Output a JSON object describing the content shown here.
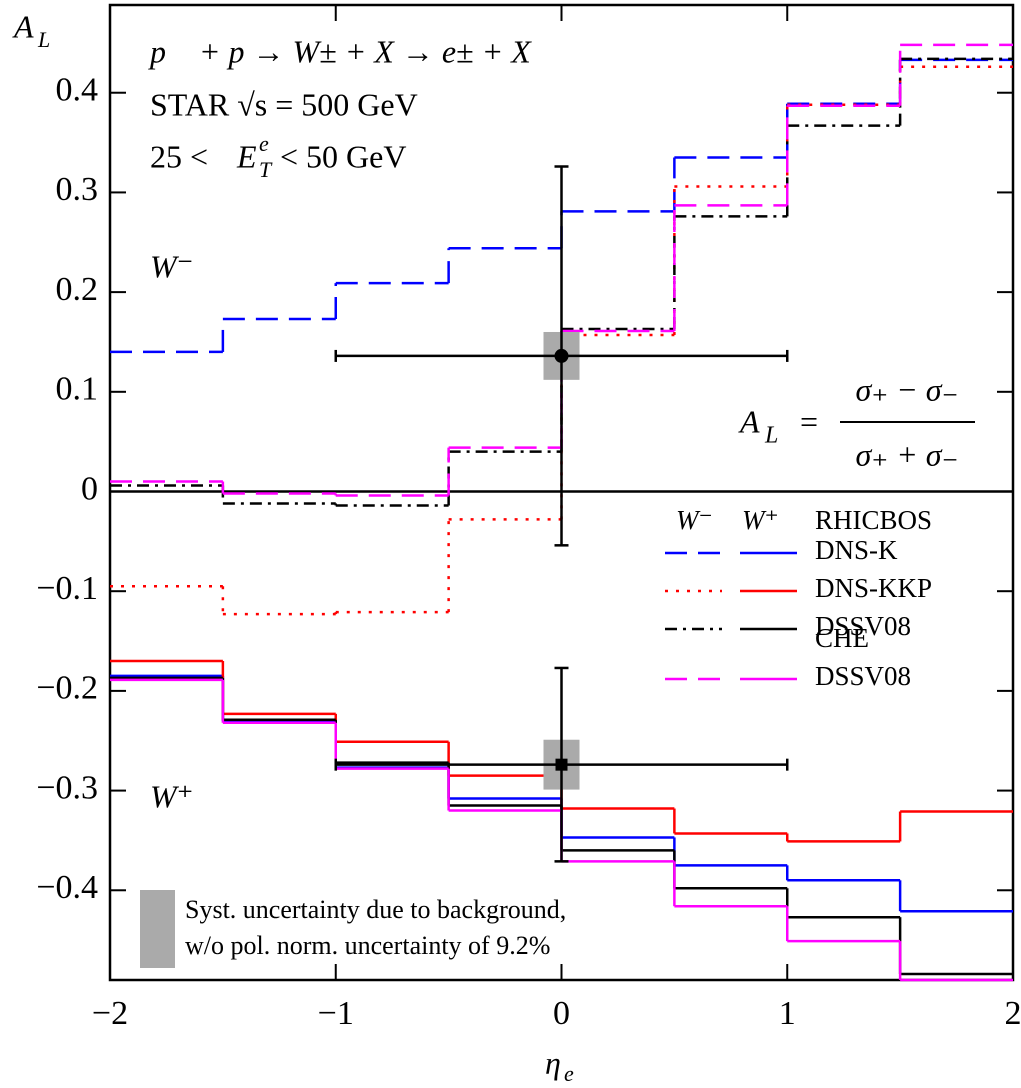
{
  "chart_data": {
    "type": "step",
    "y_label": {
      "main": "A",
      "sub": "L"
    },
    "x_label": {
      "main": "η",
      "sub": "e"
    },
    "annotations": {
      "reaction": "p⃗ + p → W± + X → e± + X",
      "experiment": "STAR  √s = 500 GeV",
      "cut": {
        "before": "25 <",
        "var": "E",
        "sup": "e",
        "sub": "T",
        "after": "< 50 GeV"
      },
      "wminus_label": "W⁻",
      "wplus_label": "W⁺",
      "formula": {
        "lhs": "A",
        "lhs_sub": "L",
        "eq": "=",
        "numerator": "σ₊ − σ₋",
        "denominator": "σ₊ + σ₋"
      },
      "syst_note": [
        "Syst. uncertainty due to background,",
        "w/o pol. norm. uncertainty of 9.2%"
      ]
    },
    "xlim": [
      -2,
      2
    ],
    "ylim": [
      -0.49,
      0.488
    ],
    "xticks": [
      {
        "value": -2,
        "label": "−2"
      },
      {
        "value": -1,
        "label": "−1"
      },
      0,
      1,
      2
    ],
    "yticks": [
      {
        "value": -0.4,
        "label": "−0.4"
      },
      {
        "value": -0.3,
        "label": "−0.3"
      },
      {
        "value": -0.2,
        "label": "−0.2"
      },
      {
        "value": -0.1,
        "label": "−0.1"
      },
      0,
      0.1,
      0.2,
      0.3,
      0.4
    ],
    "zero_line": true,
    "bins": [
      -2,
      -1.5,
      -1,
      -0.5,
      0,
      0.5,
      1,
      1.5,
      2
    ],
    "legend": {
      "columns": [
        "W⁻",
        "W⁺"
      ],
      "groups": [
        "RHICBOS",
        "CHE"
      ]
    },
    "series": [
      {
        "name": "DNS-K",
        "group": 0,
        "color": "#0000ff",
        "dash": "dashed",
        "values_wminus": [
          0.14,
          0.173,
          0.209,
          0.244,
          0.281,
          0.335,
          0.389,
          0.433
        ],
        "values_wplus": [
          -0.185,
          -0.23,
          -0.277,
          -0.308,
          -0.347,
          -0.375,
          -0.39,
          -0.421
        ]
      },
      {
        "name": "DNS-KKP",
        "group": 0,
        "color": "#ff0000",
        "dash": "dotted",
        "values_wminus": [
          -0.095,
          -0.123,
          -0.121,
          -0.028,
          0.157,
          0.306,
          0.388,
          0.426
        ],
        "values_wplus": [
          -0.17,
          -0.223,
          -0.251,
          -0.285,
          -0.318,
          -0.343,
          -0.351,
          -0.321
        ]
      },
      {
        "name": "DSSV08",
        "group": 0,
        "color": "#000000",
        "dash": "dashdot",
        "values_wminus": [
          0.006,
          -0.012,
          -0.014,
          0.04,
          0.163,
          0.276,
          0.367,
          0.434
        ],
        "values_wplus": [
          -0.187,
          -0.229,
          -0.272,
          -0.315,
          -0.36,
          -0.398,
          -0.427,
          -0.484
        ]
      },
      {
        "name": "DSSV08",
        "group": 1,
        "color": "#ff00ff",
        "dash": "dashed",
        "values_wminus": [
          0.01,
          -0.002,
          -0.004,
          0.044,
          0.161,
          0.287,
          0.387,
          0.448
        ],
        "values_wplus": [
          -0.189,
          -0.232,
          -0.278,
          -0.32,
          -0.371,
          -0.416,
          -0.451,
          -0.49
        ]
      }
    ],
    "points": [
      {
        "x": 0,
        "y": 0.136,
        "xerr": 1,
        "yerr": 0.19,
        "syst": 0.024,
        "marker": "circle"
      },
      {
        "x": 0,
        "y": -0.274,
        "xerr": 1,
        "yerr": 0.097,
        "syst": 0.025,
        "marker": "square"
      }
    ],
    "syst_color": "#aaaaaa"
  }
}
